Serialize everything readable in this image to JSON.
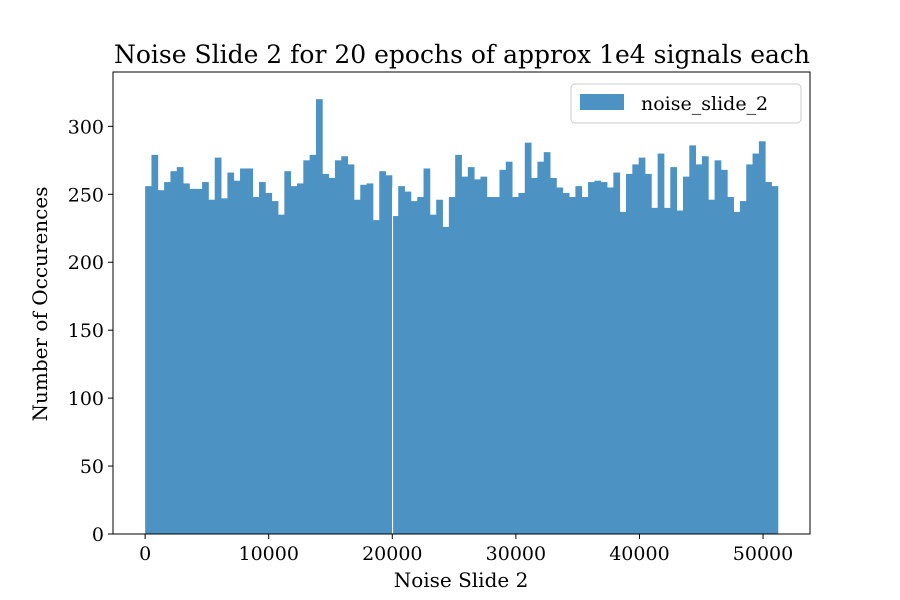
{
  "chart_data": {
    "type": "bar",
    "title": "Noise Slide 2 for 20 epochs of approx 1e4 signals each",
    "xlabel": "Noise Slide 2",
    "ylabel": "Number of Occurences",
    "xlim": [
      -2600,
      53800
    ],
    "ylim": [
      0,
      340
    ],
    "xticks": [
      0,
      10000,
      20000,
      30000,
      40000,
      50000
    ],
    "xtick_labels": [
      "0",
      "10000",
      "20000",
      "30000",
      "40000",
      "50000"
    ],
    "yticks": [
      0,
      50,
      100,
      150,
      200,
      250,
      300
    ],
    "ytick_labels": [
      "0",
      "50",
      "100",
      "150",
      "200",
      "250",
      "300"
    ],
    "grid": false,
    "legend_position": "top-right",
    "bin_start": 0,
    "bin_width": 512,
    "series": [
      {
        "name": "noise_slide_2",
        "color": "#4c92c3",
        "values": [
          256,
          279,
          253,
          259,
          267,
          270,
          258,
          254,
          254,
          259,
          246,
          277,
          247,
          266,
          260,
          269,
          269,
          248,
          259,
          251,
          245,
          235,
          267,
          256,
          258,
          275,
          279,
          320,
          265,
          262,
          275,
          278,
          272,
          246,
          257,
          258,
          231,
          267,
          264,
          234,
          256,
          252,
          245,
          248,
          269,
          235,
          246,
          226,
          248,
          279,
          263,
          270,
          261,
          263,
          248,
          248,
          268,
          274,
          248,
          251,
          288,
          262,
          274,
          281,
          262,
          255,
          251,
          248,
          256,
          248,
          259,
          260,
          259,
          255,
          266,
          237,
          265,
          272,
          277,
          265,
          240,
          280,
          240,
          270,
          238,
          263,
          286,
          272,
          278,
          246,
          275,
          268,
          248,
          237,
          245,
          272,
          280,
          289,
          259,
          256
        ]
      }
    ]
  }
}
